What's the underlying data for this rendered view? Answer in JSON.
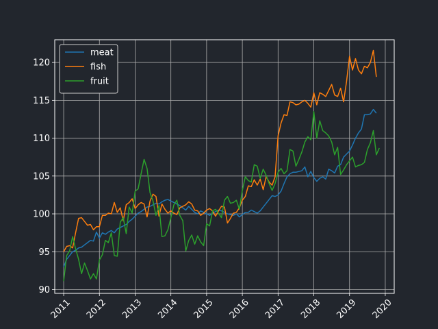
{
  "chart_data": {
    "type": "line",
    "title": "",
    "xlabel": "",
    "ylabel": "",
    "x_start": "2011-01",
    "x_step": "month",
    "xlim": [
      "2010-10",
      "2020-04"
    ],
    "ylim": [
      89.5,
      123
    ],
    "x_ticks": [
      "2011",
      "2012",
      "2013",
      "2014",
      "2015",
      "2016",
      "2017",
      "2018",
      "2019",
      "2020"
    ],
    "y_ticks": [
      90,
      95,
      100,
      105,
      110,
      115,
      120
    ],
    "grid": true,
    "legend": "top-left",
    "series": [
      {
        "name": "meat",
        "color": "#1f77b4",
        "values": [
          93.0,
          94.0,
          94.5,
          95.0,
          95.2,
          95.5,
          95.6,
          95.9,
          96.2,
          96.5,
          96.4,
          97.6,
          96.8,
          97.5,
          97.3,
          97.6,
          97.8,
          97.5,
          98.0,
          98.2,
          98.4,
          98.6,
          99.0,
          99.3,
          99.7,
          100.1,
          100.3,
          100.6,
          100.9,
          101.0,
          101.2,
          101.4,
          101.3,
          101.6,
          101.8,
          101.9,
          101.7,
          101.5,
          101.3,
          101.1,
          100.8,
          100.5,
          101.0,
          100.6,
          100.2,
          100.0,
          100.4,
          100.2,
          100.0,
          99.8,
          100.1,
          100.3,
          100.5,
          100.4,
          100.2,
          100.0,
          99.9,
          99.8,
          100.0,
          99.6,
          99.9,
          100.2,
          100.2,
          100.5,
          100.3,
          100.1,
          100.4,
          100.9,
          101.4,
          101.9,
          102.4,
          102.3,
          102.5,
          103.0,
          104.0,
          104.9,
          105.3,
          105.5,
          105.5,
          105.6,
          105.7,
          106.2,
          104.9,
          105.6,
          104.8,
          104.3,
          104.7,
          104.9,
          104.6,
          105.9,
          105.7,
          105.4,
          106.3,
          106.5,
          107.5,
          107.9,
          108.3,
          109.1,
          110.0,
          110.7,
          111.2,
          113.1,
          113.1,
          113.2,
          113.8,
          113.3
        ]
      },
      {
        "name": "fish",
        "color": "#ff7f0e",
        "values": [
          95.0,
          95.7,
          95.8,
          95.5,
          97.5,
          99.4,
          99.5,
          99.0,
          98.5,
          98.6,
          97.9,
          98.3,
          98.3,
          99.8,
          99.8,
          100.1,
          100.0,
          101.5,
          100.2,
          100.8,
          99.1,
          101.2,
          101.5,
          102.0,
          100.7,
          101.2,
          101.5,
          101.3,
          99.6,
          101.7,
          102.6,
          102.3,
          99.7,
          101.3,
          100.6,
          100.1,
          100.4,
          100.1,
          99.9,
          100.8,
          101.0,
          101.2,
          101.6,
          101.3,
          100.5,
          100.4,
          99.8,
          100.1,
          100.5,
          100.7,
          100.4,
          99.7,
          100.4,
          101.0,
          100.9,
          98.8,
          99.4,
          100.1,
          100.2,
          100.8,
          101.8,
          102.3,
          103.7,
          103.6,
          104.5,
          103.8,
          104.6,
          103.2,
          104.9,
          104.2,
          103.8,
          104.9,
          110.3,
          112.0,
          113.1,
          113.0,
          114.8,
          114.7,
          114.4,
          114.5,
          114.8,
          115.0,
          114.6,
          114.1,
          116.0,
          114.4,
          116.0,
          115.8,
          115.5,
          116.3,
          117.1,
          115.7,
          115.5,
          116.6,
          114.8,
          117.5,
          120.8,
          119.0,
          120.5,
          119.0,
          118.5,
          119.5,
          119.3,
          120.0,
          121.6,
          118.1
        ]
      },
      {
        "name": "fruit",
        "color": "#2ca02c",
        "values": [
          91.1,
          94.5,
          95.1,
          97.0,
          95.4,
          94.0,
          92.1,
          93.5,
          92.5,
          91.4,
          92.1,
          91.4,
          93.9,
          94.6,
          96.5,
          96.2,
          97.5,
          94.5,
          94.4,
          98.9,
          99.5,
          97.4,
          100.9,
          100.1,
          103.0,
          103.3,
          105.3,
          107.2,
          106.0,
          102.8,
          101.7,
          99.8,
          101.1,
          97.0,
          97.1,
          97.9,
          99.5,
          101.2,
          101.8,
          99.8,
          99.1,
          95.1,
          96.5,
          97.2,
          96.0,
          97.1,
          96.3,
          95.8,
          98.7,
          98.4,
          100.4,
          100.6,
          100.1,
          99.5,
          101.8,
          102.3,
          101.4,
          101.5,
          101.8,
          100.6,
          103.1,
          104.9,
          104.4,
          104.2,
          106.5,
          106.3,
          104.7,
          105.9,
          105.1,
          104.0,
          103.1,
          104.0,
          105.5,
          106.0,
          105.3,
          105.7,
          108.5,
          108.3,
          106.3,
          107.2,
          108.2,
          109.5,
          110.2,
          109.8,
          113.5,
          110.0,
          112.3,
          111.0,
          110.7,
          110.3,
          109.5,
          107.8,
          108.8,
          105.2,
          105.8,
          106.5,
          107.0,
          107.5,
          106.2,
          106.4,
          106.5,
          106.8,
          108.5,
          109.4,
          111.0,
          107.8,
          108.7
        ]
      }
    ]
  }
}
